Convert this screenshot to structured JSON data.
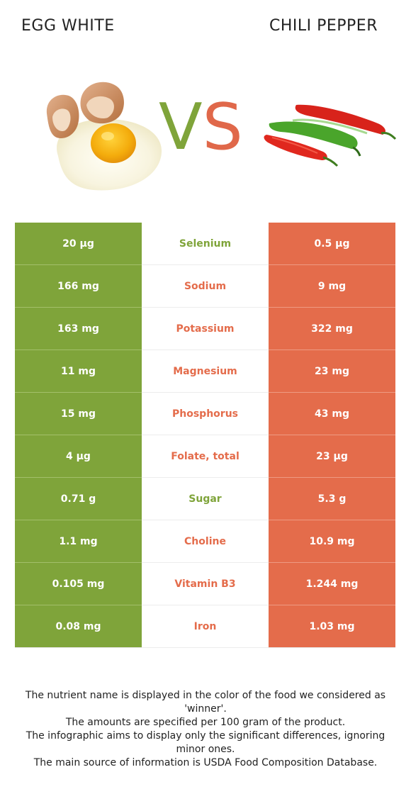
{
  "header": {
    "left_title": "EGG WHITE",
    "right_title": "CHILI PEPPER",
    "vs_v": "V",
    "vs_s": "S"
  },
  "colors": {
    "left_food": "#7fa43a",
    "right_food": "#e46c4b"
  },
  "rows": [
    {
      "left": "20 µg",
      "nutrient": "Selenium",
      "right": "0.5 µg",
      "winner": "left"
    },
    {
      "left": "166 mg",
      "nutrient": "Sodium",
      "right": "9 mg",
      "winner": "right"
    },
    {
      "left": "163 mg",
      "nutrient": "Potassium",
      "right": "322 mg",
      "winner": "right"
    },
    {
      "left": "11 mg",
      "nutrient": "Magnesium",
      "right": "23 mg",
      "winner": "right"
    },
    {
      "left": "15 mg",
      "nutrient": "Phosphorus",
      "right": "43 mg",
      "winner": "right"
    },
    {
      "left": "4 µg",
      "nutrient": "Folate, total",
      "right": "23 µg",
      "winner": "right"
    },
    {
      "left": "0.71 g",
      "nutrient": "Sugar",
      "right": "5.3 g",
      "winner": "left"
    },
    {
      "left": "1.1 mg",
      "nutrient": "Choline",
      "right": "10.9 mg",
      "winner": "right"
    },
    {
      "left": "0.105 mg",
      "nutrient": "Vitamin B3",
      "right": "1.244 mg",
      "winner": "right"
    },
    {
      "left": "0.08 mg",
      "nutrient": "Iron",
      "right": "1.03 mg",
      "winner": "right"
    }
  ],
  "footer": {
    "line1": "The nutrient name is displayed in the color of the food we considered as 'winner'.",
    "line2": "The amounts are specified per 100 gram of the product.",
    "line3": "The infographic aims to display only the significant differences, ignoring minor ones.",
    "line4": "The main source of information is USDA Food Composition Database."
  }
}
